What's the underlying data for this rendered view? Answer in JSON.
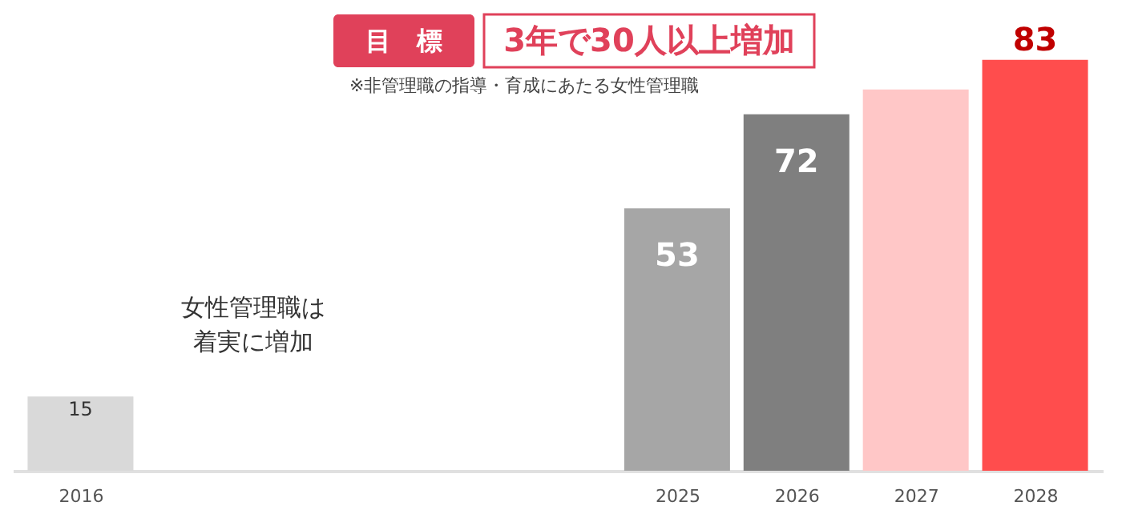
{
  "chart_data": {
    "type": "bar",
    "title": "目　標",
    "subtitle": "3年で30人以上増加",
    "annotations": [
      "※非管理職の指導・育成にあたる女性管理職",
      "女性管理職は",
      "着実に増加"
    ],
    "categories": [
      "2016",
      null,
      null,
      null,
      null,
      "2025",
      "2026",
      "2027",
      "2028"
    ],
    "values": [
      15,
      null,
      null,
      null,
      null,
      53,
      72,
      77,
      83
    ],
    "colors": [
      "#d9d9d9",
      "#ffffff",
      "#ffffff",
      "#ffffff",
      "#ffffff",
      "#a6a6a6",
      "#7f7f7f",
      "#ffc7c7",
      "#ff4d4d"
    ],
    "value_labels": [
      "15",
      null,
      null,
      null,
      null,
      "53",
      "72",
      null,
      "83"
    ],
    "grid": false
  }
}
